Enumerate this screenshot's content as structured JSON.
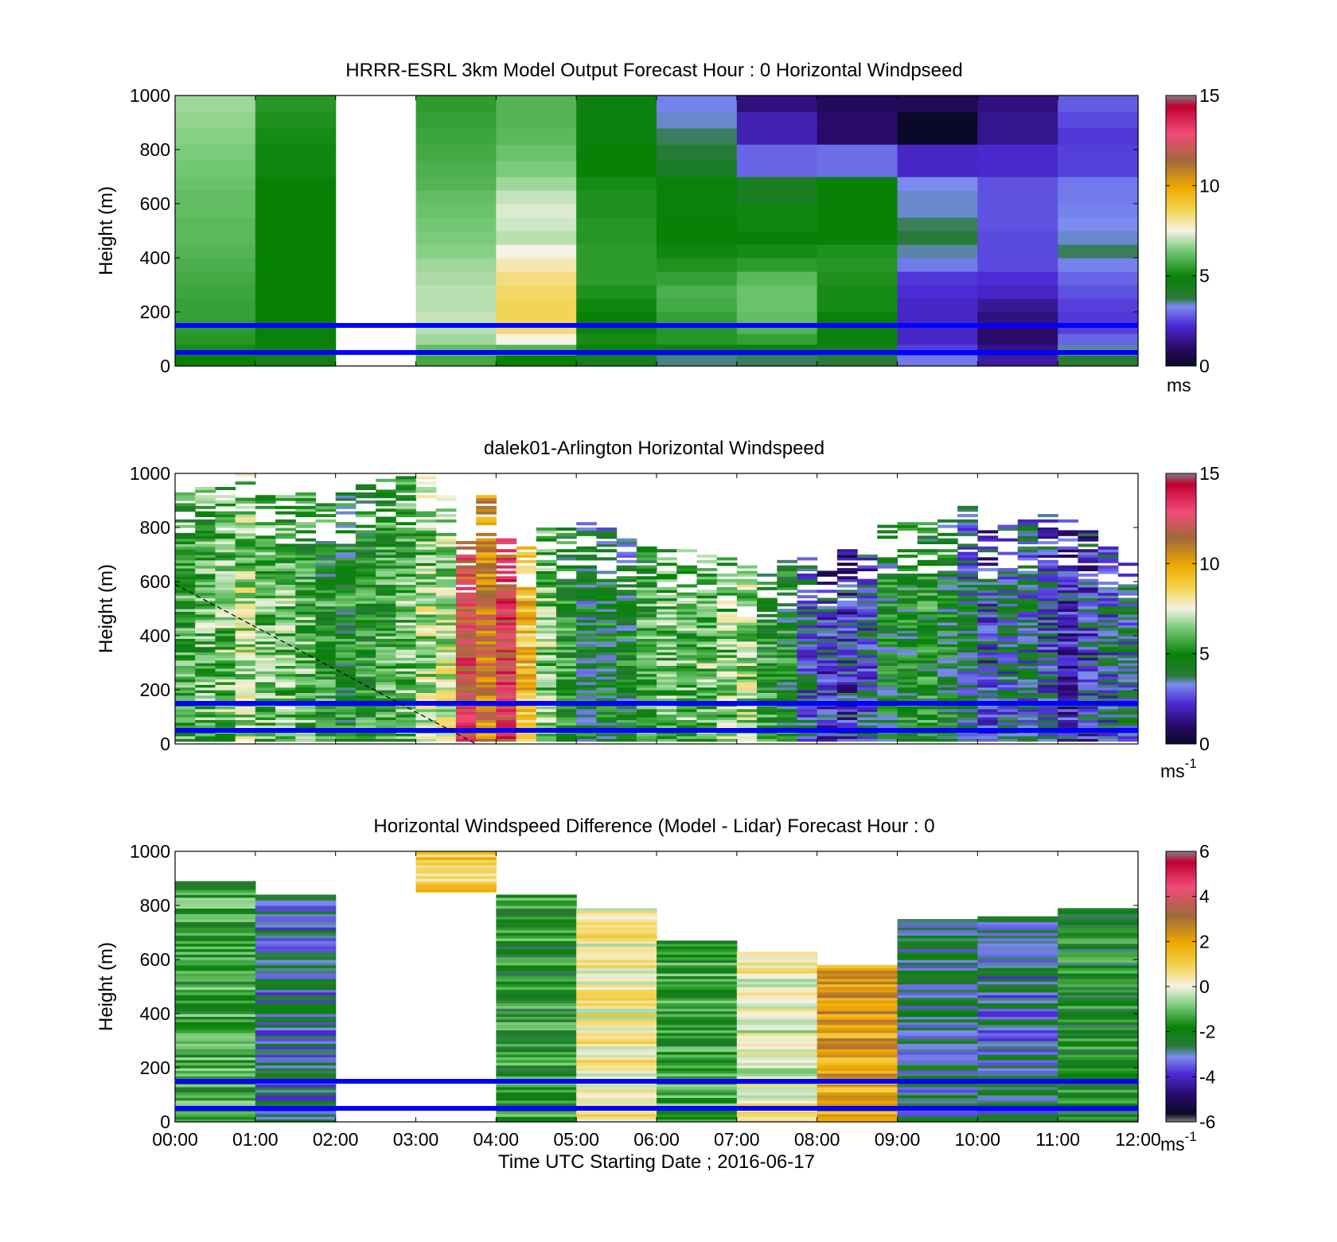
{
  "figure": {
    "xlabel": "Time UTC  Starting Date ; 2016-06-17",
    "time_ticks": [
      "00:00",
      "01:00",
      "02:00",
      "03:00",
      "04:00",
      "05:00",
      "06:00",
      "07:00",
      "08:00",
      "09:00",
      "10:00",
      "11:00",
      "12:00"
    ],
    "colors": {
      "reference_line": "#0000ff",
      "axis": "#000000",
      "missing": "#ffffff"
    }
  },
  "chart_data": [
    {
      "type": "heatmap",
      "title": "HRRR-ESRL 3km Model Output   Forecast Hour : 0 Horizontal Windpseed",
      "ylabel": "Height (m)",
      "xlim": [
        "00:00",
        "12:00"
      ],
      "ylim": [
        0,
        1000
      ],
      "yticks": [
        "0",
        "200",
        "400",
        "600",
        "800",
        "1000"
      ],
      "colorbar": {
        "range": [
          0,
          15
        ],
        "ticks": [
          "0",
          "5",
          "10",
          "15"
        ],
        "unit": "ms",
        "unit_sup": ""
      },
      "reference_lines_m": [
        50,
        150
      ],
      "profile_heights_m": [
        40,
        80,
        120,
        160,
        200,
        250,
        300,
        350,
        400,
        450,
        500,
        550,
        600,
        650,
        700,
        760,
        820,
        880,
        940,
        1000
      ],
      "profiles": [
        {
          "hour": "00:00",
          "speeds": [
            5.0,
            5.2,
            5.4,
            5.5,
            5.6,
            5.6,
            5.7,
            5.8,
            5.9,
            6.0,
            6.1,
            6.1,
            6.2,
            6.2,
            6.3,
            6.4,
            6.5,
            6.6,
            6.7,
            6.8
          ]
        },
        {
          "hour": "01:00",
          "speeds": [
            4.6,
            4.8,
            4.9,
            5.0,
            5.0,
            5.0,
            5.0,
            5.0,
            5.0,
            5.0,
            5.0,
            5.0,
            5.0,
            5.0,
            5.0,
            5.1,
            5.1,
            5.2,
            5.3,
            5.4
          ]
        },
        {
          "hour": "02:00",
          "speeds": []
        },
        {
          "hour": "03:00",
          "speeds": [
            5.8,
            6.2,
            6.8,
            7.0,
            7.1,
            7.0,
            7.0,
            6.9,
            6.8,
            6.6,
            6.5,
            6.4,
            6.3,
            6.2,
            6.0,
            5.9,
            5.8,
            5.7,
            5.6,
            5.5
          ]
        },
        {
          "hour": "04:00",
          "speeds": [
            5.0,
            6.0,
            7.5,
            8.4,
            8.6,
            8.6,
            8.5,
            8.3,
            7.9,
            7.5,
            7.0,
            7.2,
            7.3,
            7.1,
            6.8,
            6.5,
            6.3,
            6.1,
            6.0,
            6.0
          ]
        },
        {
          "hour": "05:00",
          "speeds": [
            4.4,
            5.0,
            5.2,
            5.0,
            5.0,
            5.1,
            5.3,
            5.5,
            5.5,
            5.5,
            5.4,
            5.4,
            5.3,
            5.3,
            5.2,
            5.0,
            5.0,
            4.8,
            4.8,
            4.8
          ]
        },
        {
          "hour": "06:00",
          "speeds": [
            3.5,
            4.6,
            5.4,
            5.4,
            5.6,
            5.8,
            5.9,
            5.6,
            5.3,
            5.1,
            5.0,
            5.0,
            4.9,
            4.9,
            4.9,
            4.2,
            3.8,
            3.6,
            3.3,
            3.1
          ]
        },
        {
          "hour": "07:00",
          "speeds": [
            3.6,
            4.8,
            5.6,
            6.0,
            6.2,
            6.3,
            6.3,
            6.1,
            5.5,
            5.2,
            5.0,
            5.1,
            5.1,
            4.3,
            4.3,
            2.8,
            2.8,
            1.8,
            1.8,
            1.2
          ]
        },
        {
          "hour": "08:00",
          "speeds": [
            3.8,
            4.4,
            4.9,
            4.9,
            5.0,
            5.2,
            5.2,
            5.3,
            5.4,
            5.3,
            5.0,
            5.0,
            5.0,
            5.0,
            5.0,
            2.9,
            2.9,
            1.0,
            1.0,
            0.8
          ]
        },
        {
          "hour": "09:00",
          "speeds": [
            3.0,
            2.4,
            2.0,
            2.0,
            2.0,
            2.0,
            2.2,
            2.3,
            3.0,
            3.4,
            3.8,
            3.6,
            3.3,
            3.3,
            3.2,
            2.0,
            2.0,
            0.0,
            0.0,
            0.7
          ]
        },
        {
          "hour": "10:00",
          "speeds": [
            1.6,
            1.3,
            1.0,
            1.0,
            1.2,
            1.5,
            2.0,
            2.2,
            2.5,
            2.5,
            2.5,
            2.6,
            2.6,
            2.6,
            2.6,
            2.1,
            2.1,
            1.4,
            1.4,
            1.2
          ]
        },
        {
          "hour": "11:00",
          "speeds": [
            3.8,
            3.4,
            2.8,
            2.4,
            2.3,
            2.4,
            2.6,
            2.8,
            3.1,
            3.6,
            3.3,
            3.2,
            3.1,
            3.0,
            3.0,
            2.4,
            2.4,
            2.3,
            2.5,
            2.7
          ]
        }
      ]
    },
    {
      "type": "heatmap",
      "title": "dalek01-Arlington  Horizontal Windspeed",
      "ylabel": "Height (m)",
      "xlim": [
        "00:00",
        "12:00"
      ],
      "ylim": [
        0,
        1000
      ],
      "yticks": [
        "0",
        "200",
        "400",
        "600",
        "800",
        "1000"
      ],
      "colorbar": {
        "range": [
          0,
          15
        ],
        "ticks": [
          "0",
          "5",
          "10",
          "15"
        ],
        "unit": "ms",
        "unit_sup": "-1"
      },
      "reference_lines_m": [
        50,
        150
      ],
      "mixing_layer_line": {
        "x": [
          "00:00",
          "03:45"
        ],
        "y": [
          590,
          0
        ]
      },
      "profiles_every_15min": [
        {
          "t": "00:00",
          "top": 960,
          "mean": 5.6
        },
        {
          "t": "00:15",
          "top": 980,
          "mean": 6.0
        },
        {
          "t": "00:30",
          "top": 980,
          "mean": 6.3
        },
        {
          "t": "00:45",
          "top": 1000,
          "mean": 7.0
        },
        {
          "t": "01:00",
          "top": 950,
          "mean": 6.2
        },
        {
          "t": "01:15",
          "top": 930,
          "mean": 6.3
        },
        {
          "t": "01:30",
          "top": 930,
          "mean": 5.8
        },
        {
          "t": "01:45",
          "top": 930,
          "mean": 5.3
        },
        {
          "t": "02:00",
          "top": 930,
          "mean": 5.0
        },
        {
          "t": "02:15",
          "top": 960,
          "mean": 5.2
        },
        {
          "t": "02:30",
          "top": 980,
          "mean": 5.6
        },
        {
          "t": "02:45",
          "top": 990,
          "mean": 6.0
        },
        {
          "t": "03:00",
          "top": 1000,
          "mean": 6.9
        },
        {
          "t": "03:15",
          "top": 960,
          "mean": 7.2
        },
        {
          "t": "03:30",
          "top": 750,
          "mean": 12.5
        },
        {
          "t": "03:45",
          "top": 920,
          "mean": 11.0
        },
        {
          "t": "04:00",
          "top": 760,
          "mean": 12.8
        },
        {
          "t": "04:15",
          "top": 740,
          "mean": 9.4
        },
        {
          "t": "04:30",
          "top": 800,
          "mean": 6.5
        },
        {
          "t": "04:45",
          "top": 800,
          "mean": 5.2
        },
        {
          "t": "05:00",
          "top": 820,
          "mean": 4.3
        },
        {
          "t": "05:15",
          "top": 800,
          "mean": 4.4
        },
        {
          "t": "05:30",
          "top": 760,
          "mean": 4.6
        },
        {
          "t": "05:45",
          "top": 740,
          "mean": 5.5
        },
        {
          "t": "06:00",
          "top": 720,
          "mean": 6.0
        },
        {
          "t": "06:15",
          "top": 720,
          "mean": 6.0
        },
        {
          "t": "06:30",
          "top": 700,
          "mean": 6.3
        },
        {
          "t": "06:45",
          "top": 690,
          "mean": 6.5
        },
        {
          "t": "07:00",
          "top": 660,
          "mean": 6.8
        },
        {
          "t": "07:15",
          "top": 640,
          "mean": 5.2
        },
        {
          "t": "07:30",
          "top": 680,
          "mean": 4.8
        },
        {
          "t": "07:45",
          "top": 720,
          "mean": 3.2
        },
        {
          "t": "08:00",
          "top": 690,
          "mean": 2.5
        },
        {
          "t": "08:15",
          "top": 720,
          "mean": 2.3
        },
        {
          "t": "08:30",
          "top": 780,
          "mean": 3.0
        },
        {
          "t": "08:45",
          "top": 810,
          "mean": 4.5
        },
        {
          "t": "09:00",
          "top": 820,
          "mean": 4.7
        },
        {
          "t": "09:15",
          "top": 820,
          "mean": 5.0
        },
        {
          "t": "09:30",
          "top": 830,
          "mean": 4.5
        },
        {
          "t": "09:45",
          "top": 880,
          "mean": 3.8
        },
        {
          "t": "10:00",
          "top": 800,
          "mean": 2.8
        },
        {
          "t": "10:15",
          "top": 810,
          "mean": 3.4
        },
        {
          "t": "10:30",
          "top": 830,
          "mean": 3.6
        },
        {
          "t": "10:45",
          "top": 860,
          "mean": 3.0
        },
        {
          "t": "11:00",
          "top": 830,
          "mean": 2.2
        },
        {
          "t": "11:15",
          "top": 800,
          "mean": 2.6
        },
        {
          "t": "11:30",
          "top": 730,
          "mean": 3.2
        },
        {
          "t": "11:45",
          "top": 690,
          "mean": 3.6
        }
      ]
    },
    {
      "type": "heatmap",
      "title": "Horizontal Windspeed Difference (Model - Lidar) Forecast Hour : 0",
      "ylabel": "Height (m)",
      "xlim": [
        "00:00",
        "12:00"
      ],
      "ylim": [
        0,
        1000
      ],
      "yticks": [
        "0",
        "200",
        "400",
        "600",
        "800",
        "1000"
      ],
      "colorbar": {
        "range": [
          -6,
          6
        ],
        "ticks": [
          "-6",
          "-4",
          "-2",
          "0",
          "2",
          "4",
          "6"
        ],
        "unit": "ms",
        "unit_sup": "-1"
      },
      "reference_lines_m": [
        50,
        150
      ],
      "hourly_columns": [
        {
          "hour": "00:00",
          "bottom": 0,
          "top": 890,
          "mean_diff": -1.6
        },
        {
          "hour": "01:00",
          "bottom": 0,
          "top": 840,
          "mean_diff": -3.0
        },
        {
          "hour": "02:00",
          "bottom": 0,
          "top": 0,
          "mean_diff": null
        },
        {
          "hour": "03:00",
          "bottom": 850,
          "top": 1000,
          "mean_diff": 1.0
        },
        {
          "hour": "04:00",
          "bottom": 0,
          "top": 840,
          "mean_diff": -1.8
        },
        {
          "hour": "05:00",
          "bottom": 0,
          "top": 790,
          "mean_diff": 0.3
        },
        {
          "hour": "06:00",
          "bottom": 0,
          "top": 670,
          "mean_diff": -1.5
        },
        {
          "hour": "07:00",
          "bottom": 0,
          "top": 630,
          "mean_diff": 0.0
        },
        {
          "hour": "08:00",
          "bottom": 0,
          "top": 580,
          "mean_diff": 2.0
        },
        {
          "hour": "09:00",
          "bottom": 0,
          "top": 750,
          "mean_diff": -2.7
        },
        {
          "hour": "10:00",
          "bottom": 0,
          "top": 760,
          "mean_diff": -3.0
        },
        {
          "hour": "11:00",
          "bottom": 0,
          "top": 790,
          "mean_diff": -2.0
        }
      ]
    }
  ]
}
